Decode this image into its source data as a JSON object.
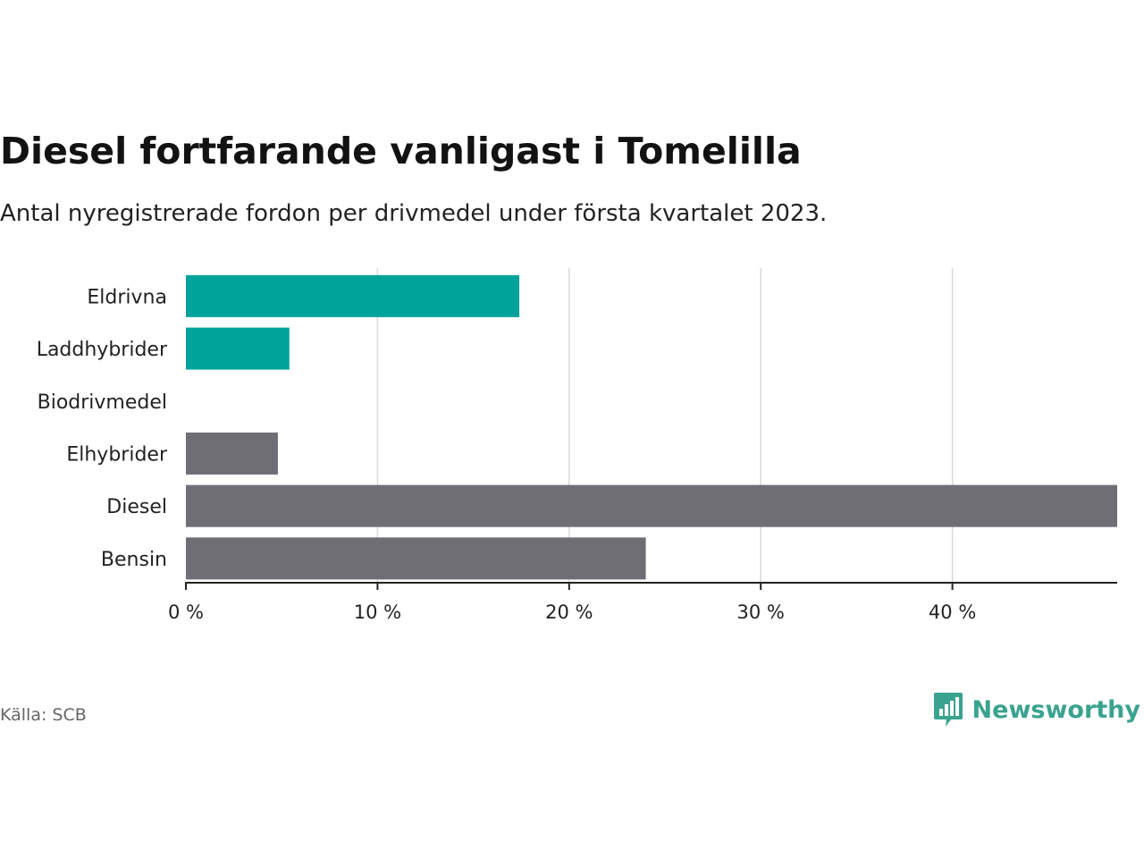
{
  "header": {
    "title": "Diesel fortfarande vanligast i Tomelilla",
    "subtitle": "Antal nyregistrerade fordon per drivmedel under första kvartalet 2023."
  },
  "footer": {
    "source": "Källa: SCB",
    "brand": "Newsworthy",
    "brand_icon": "bar-chart-speech-bubble-icon"
  },
  "colors": {
    "electric": "#00a39a",
    "other": "#6f6e74",
    "grid": "#d9d9d9",
    "axis": "#222222"
  },
  "chart_data": {
    "type": "bar",
    "orientation": "horizontal",
    "title": "Diesel fortfarande vanligast i Tomelilla",
    "subtitle": "Antal nyregistrerade fordon per drivmedel under första kvartalet 2023.",
    "categories": [
      "Eldrivna",
      "Laddhybrider",
      "Biodrivmedel",
      "Elhybrider",
      "Diesel",
      "Bensin"
    ],
    "values": [
      17.4,
      5.4,
      0,
      4.8,
      48.6,
      24.0
    ],
    "bar_colors": [
      "#00a39a",
      "#00a39a",
      "#6f6e74",
      "#6f6e74",
      "#6f6e74",
      "#6f6e74"
    ],
    "xticks": [
      0,
      10,
      20,
      30,
      40
    ],
    "xtick_labels": [
      "0 %",
      "10 %",
      "20 %",
      "30 %",
      "40 %"
    ],
    "xlim": [
      0,
      48.6
    ],
    "xlabel": "",
    "ylabel": "",
    "grid": "vertical"
  }
}
